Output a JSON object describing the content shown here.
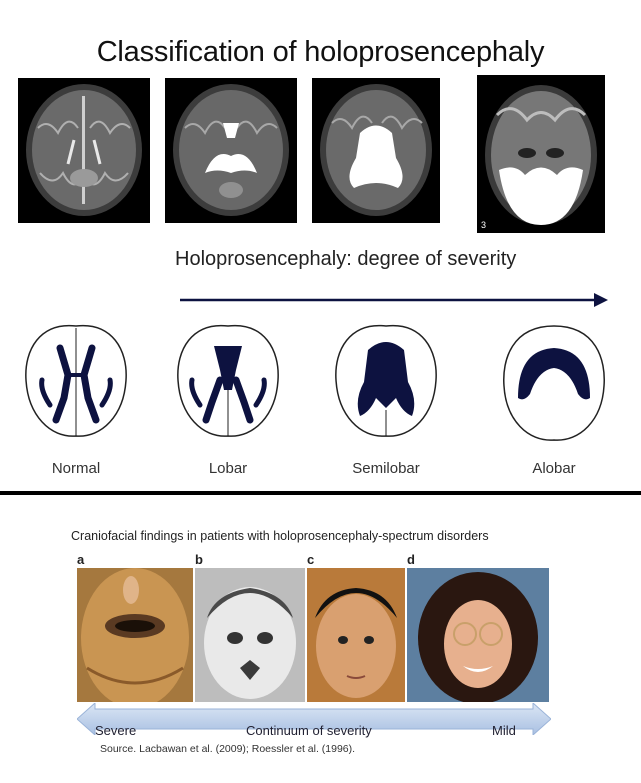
{
  "top_panel": {
    "title": "Classification of holoprosencephaly",
    "mri_panel_number": "3",
    "severity_label": "Holoprosencephaly: degree of severity",
    "schematic_labels": [
      "Normal",
      "Lobar",
      "Semilobar",
      "Alobar"
    ],
    "schematic_color": "#0d1240"
  },
  "bottom_panel": {
    "title": "Craniofacial findings in patients with holoprosencephaly-spectrum disorders",
    "panel_letters": [
      "a",
      "b",
      "c",
      "d"
    ],
    "band_left_label": "Severe",
    "band_center_label": "Continuum of severity",
    "band_right_label": "Mild",
    "band_color": "#b9cde9",
    "source": "Source. Lacbawan et al. (2009); Roessler et al. (1996)."
  }
}
